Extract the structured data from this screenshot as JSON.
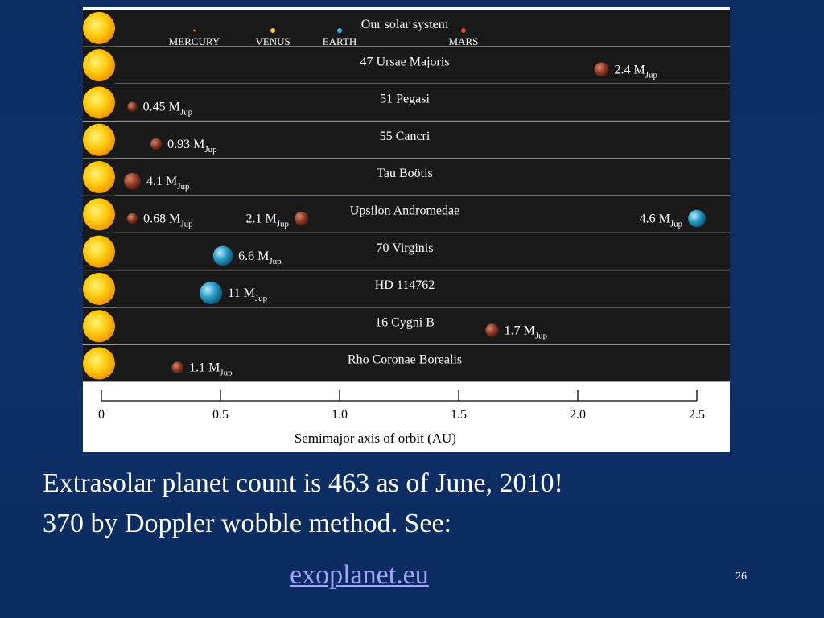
{
  "figure": {
    "axis": {
      "title": "Semimajor axis of orbit (AU)",
      "min": 0,
      "max": 2.5,
      "ticks": [
        {
          "value": 0,
          "label": "0"
        },
        {
          "value": 0.5,
          "label": "0.5"
        },
        {
          "value": 1.0,
          "label": "1.0"
        },
        {
          "value": 1.5,
          "label": "1.5"
        },
        {
          "value": 2.0,
          "label": "2.0"
        },
        {
          "value": 2.5,
          "label": "2.5"
        }
      ]
    },
    "colors": {
      "star": "#f7b500",
      "star_core": "#ffe866",
      "planet_brown": "#8e3b26",
      "planet_blue": "#2a9bc4",
      "earth": "#3fb6e8",
      "venus": "#f5c83a",
      "mercury": "#c96a4a",
      "mars": "#d24a2a"
    },
    "solar_system": {
      "name": "Our solar system",
      "planets": [
        {
          "name": "MERCURY",
          "a_au": 0.39,
          "color": "mercury"
        },
        {
          "name": "VENUS",
          "a_au": 0.72,
          "color": "venus"
        },
        {
          "name": "EARTH",
          "a_au": 1.0,
          "color": "earth"
        },
        {
          "name": "MARS",
          "a_au": 1.52,
          "color": "mars"
        }
      ]
    },
    "systems": [
      {
        "name": "47 Ursae Majoris",
        "planets": [
          {
            "a_au": 2.1,
            "mass": "2.4",
            "unit": "M",
            "sub": "Jup",
            "label_side": "right",
            "color": "brown",
            "size": 2.4
          }
        ]
      },
      {
        "name": "51 Pegasi",
        "planets": [
          {
            "a_au": 0.13,
            "mass": "0.45",
            "unit": "M",
            "sub": "Jup",
            "label_side": "right",
            "color": "brown",
            "size": 0.45
          }
        ]
      },
      {
        "name": "55 Cancri",
        "planets": [
          {
            "a_au": 0.23,
            "mass": "0.93",
            "unit": "M",
            "sub": "Jup",
            "label_side": "right",
            "color": "brown",
            "size": 0.93
          }
        ]
      },
      {
        "name": "Tau Boötis",
        "planets": [
          {
            "a_au": 0.13,
            "mass": "4.1",
            "unit": "M",
            "sub": "Jup",
            "label_side": "right",
            "color": "brown",
            "size": 4.1
          }
        ]
      },
      {
        "name": "Upsilon Andromedae",
        "planets": [
          {
            "a_au": 0.13,
            "mass": "0.68",
            "unit": "M",
            "sub": "Jup",
            "label_side": "right",
            "color": "brown",
            "size": 0.68
          },
          {
            "a_au": 0.84,
            "mass": "2.1",
            "unit": "M",
            "sub": "Jup",
            "label_side": "left",
            "color": "brown",
            "size": 2.1
          },
          {
            "a_au": 2.5,
            "mass": "4.6",
            "unit": "M",
            "sub": "Jup",
            "label_side": "left",
            "color": "blue",
            "size": 4.6
          }
        ]
      },
      {
        "name": "70 Virginis",
        "planets": [
          {
            "a_au": 0.51,
            "mass": "6.6",
            "unit": "M",
            "sub": "Jup",
            "label_side": "right",
            "color": "blue",
            "size": 6.6
          }
        ]
      },
      {
        "name": "HD 114762",
        "planets": [
          {
            "a_au": 0.46,
            "mass": "11",
            "unit": "M",
            "sub": "Jup",
            "label_side": "right",
            "color": "blue",
            "size": 11
          }
        ]
      },
      {
        "name": "16 Cygni B",
        "planets": [
          {
            "a_au": 1.64,
            "mass": "1.7",
            "unit": "M",
            "sub": "Jup",
            "label_side": "right",
            "color": "brown",
            "size": 1.7
          }
        ]
      },
      {
        "name": "Rho Coronae Borealis",
        "planets": [
          {
            "a_au": 0.32,
            "mass": "1.1",
            "unit": "M",
            "sub": "Jup",
            "label_side": "right",
            "color": "brown",
            "size": 1.1
          }
        ]
      }
    ]
  },
  "caption": {
    "line1": "Extrasolar planet count is 463 as of June, 2010!",
    "line2": "370 by Doppler wobble method.  See:"
  },
  "link": {
    "text": "exoplanet.eu"
  },
  "slide_number": "26"
}
